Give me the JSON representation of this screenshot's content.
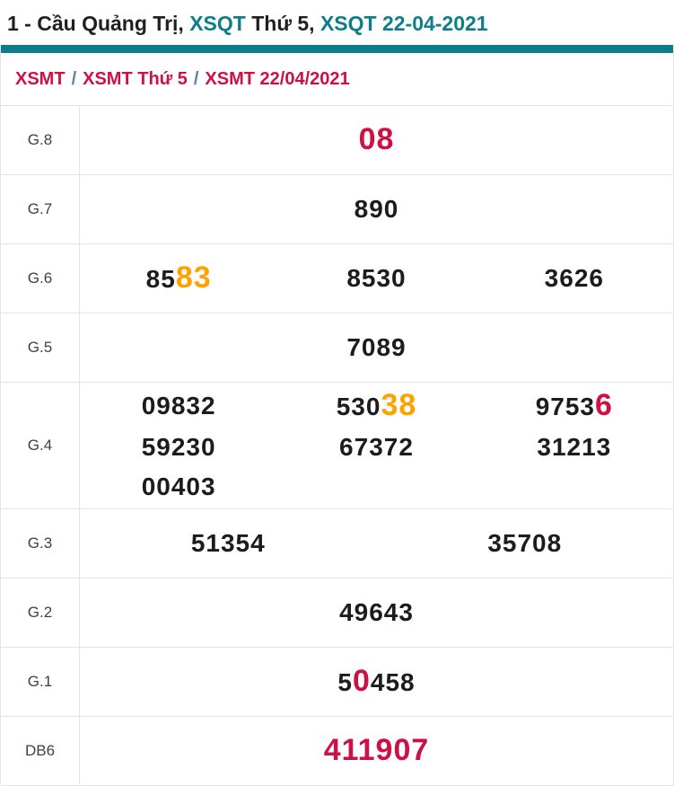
{
  "colors": {
    "accent_teal": "#0e7d8a",
    "crimson": "#cd1144",
    "orange": "#ffa200",
    "number_dark": "#1c1c1c",
    "title_dark": "#1f1f1f",
    "label_grey": "#3f3f3f",
    "border_grey": "#e3e3e3",
    "slash_blue": "#5b82a8"
  },
  "title": {
    "parts": [
      {
        "text": "1 - Cầu Quảng Trị, ",
        "accent": false
      },
      {
        "text": "XSQT",
        "accent": true
      },
      {
        "text": " Thứ 5, ",
        "accent": false
      },
      {
        "text": "XSQT 22-04-2021",
        "accent": true
      }
    ]
  },
  "breadcrumb": {
    "separator": "/",
    "items": [
      {
        "label": "XSMT"
      },
      {
        "label": "XSMT Thứ 5"
      },
      {
        "label": "XSMT 22/04/2021"
      }
    ]
  },
  "results_table": {
    "rows": [
      {
        "label": "G.8",
        "cols": 1,
        "numbers": [
          [
            {
              "t": "08",
              "c": "red"
            }
          ]
        ]
      },
      {
        "label": "G.7",
        "cols": 1,
        "numbers": [
          [
            {
              "t": "890"
            }
          ]
        ]
      },
      {
        "label": "G.6",
        "cols": 3,
        "numbers": [
          [
            {
              "t": "85"
            },
            {
              "t": "83",
              "c": "orange"
            }
          ],
          [
            {
              "t": "8530"
            }
          ],
          [
            {
              "t": "3626"
            }
          ]
        ]
      },
      {
        "label": "G.5",
        "cols": 1,
        "numbers": [
          [
            {
              "t": "7089"
            }
          ]
        ]
      },
      {
        "label": "G.4",
        "cols": 3,
        "numbers": [
          [
            {
              "t": "09832"
            }
          ],
          [
            {
              "t": "530"
            },
            {
              "t": "38",
              "c": "orange"
            }
          ],
          [
            {
              "t": "9753"
            },
            {
              "t": "6",
              "c": "red"
            }
          ],
          [
            {
              "t": "59230"
            }
          ],
          [
            {
              "t": "67372"
            }
          ],
          [
            {
              "t": "31213"
            }
          ],
          [
            {
              "t": "00403"
            }
          ]
        ]
      },
      {
        "label": "G.3",
        "cols": 2,
        "numbers": [
          [
            {
              "t": "51354"
            }
          ],
          [
            {
              "t": "35708"
            }
          ]
        ]
      },
      {
        "label": "G.2",
        "cols": 1,
        "numbers": [
          [
            {
              "t": "49643"
            }
          ]
        ]
      },
      {
        "label": "G.1",
        "cols": 1,
        "numbers": [
          [
            {
              "t": "5"
            },
            {
              "t": "0",
              "c": "red"
            },
            {
              "t": "458"
            }
          ]
        ]
      },
      {
        "label": "DB6",
        "cols": 1,
        "numbers": [
          [
            {
              "t": "411907",
              "c": "red"
            }
          ]
        ]
      }
    ]
  }
}
